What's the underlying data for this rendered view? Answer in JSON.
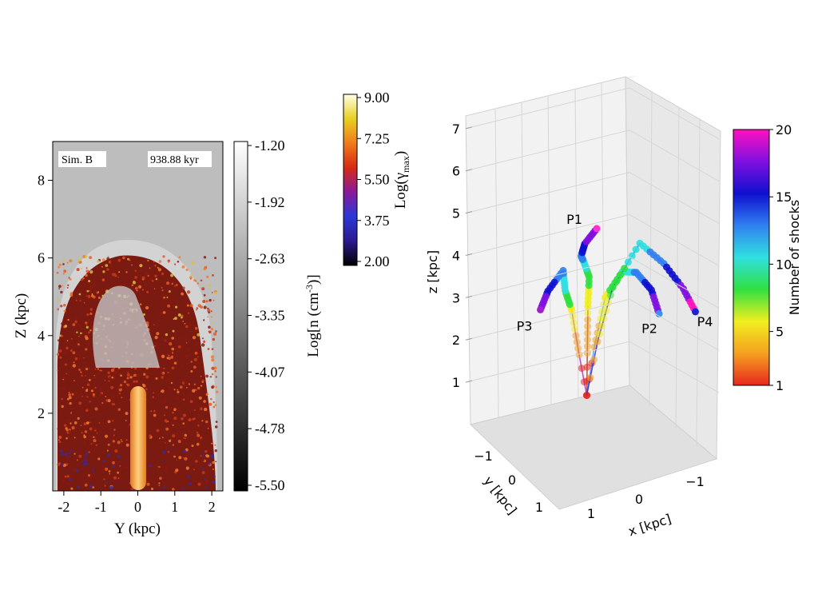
{
  "chart_data": [
    {
      "type": "heatmap",
      "title": "",
      "panel_label": "Sim. B",
      "time_label": "938.88 kyr",
      "xlabel": "Y (kpc)",
      "ylabel": "Z (kpc)",
      "xlim": [
        -2.3,
        2.3
      ],
      "ylim": [
        0,
        9
      ],
      "xticks": [
        "-2",
        "-1",
        "0",
        "1",
        "2"
      ],
      "yticks": [
        "2",
        "4",
        "6",
        "8"
      ],
      "density_colorbar": {
        "label": "Log[n (cm⁻³)]",
        "ticks": [
          "-1.20",
          "-1.92",
          "-2.63",
          "-3.35",
          "-4.07",
          "-4.78",
          "-5.50"
        ],
        "range": [
          -5.5,
          -1.2
        ],
        "colors": [
          "#000000",
          "#ffffff"
        ]
      },
      "gamma_colorbar": {
        "label": "Log(γmax)",
        "ticks": [
          "9.00",
          "7.25",
          "5.50",
          "3.75",
          "2.00"
        ],
        "range": [
          2.0,
          9.0
        ],
        "colors": [
          "#000000",
          "#2b1a8f",
          "#2a38d8",
          "#8a1a9a",
          "#d62a14",
          "#f07a1a",
          "#e8d020",
          "#ffffe8"
        ]
      }
    },
    {
      "type": "scatter",
      "projection": "3d",
      "xlabel": "x [kpc]",
      "ylabel": "y [kpc]",
      "zlabel": "z [kpc]",
      "xticks": [
        "1",
        "0",
        "−1"
      ],
      "yticks": [
        "−1",
        "0",
        "1"
      ],
      "zticks": [
        "1",
        "2",
        "3",
        "4",
        "5",
        "6",
        "7"
      ],
      "zlim": [
        0,
        7
      ],
      "colorbar": {
        "label": "Number of shocks",
        "ticks": [
          "1",
          "5",
          "10",
          "15",
          "20"
        ],
        "range": [
          1,
          20
        ],
        "colors": [
          "#e8281e",
          "#f5a020",
          "#f0ee20",
          "#30e040",
          "#30e0e0",
          "#3080f0",
          "#1010d0",
          "#8010e0",
          "#ff10c0"
        ]
      },
      "series": [
        {
          "name": "P1",
          "color": "#ff30d0",
          "points": [
            [
              0.1,
              0.0,
              0.5
            ],
            [
              0.05,
              0.05,
              1.5
            ],
            [
              0.0,
              0.1,
              2.6
            ],
            [
              -0.1,
              0.2,
              3.3
            ],
            [
              -0.2,
              0.5,
              3.7
            ],
            [
              -0.5,
              1.0,
              3.9
            ],
            [
              -0.8,
              1.3,
              4.2
            ],
            [
              -1.0,
              1.2,
              4.5
            ]
          ]
        },
        {
          "name": "P2",
          "color": "#3a90f0",
          "points": [
            [
              0.1,
              0.0,
              0.5
            ],
            [
              0.0,
              -0.1,
              1.6
            ],
            [
              -0.1,
              -0.3,
              2.7
            ],
            [
              -0.2,
              -0.7,
              3.2
            ],
            [
              -0.3,
              -1.0,
              3.1
            ],
            [
              -0.5,
              -1.2,
              2.6
            ],
            [
              -0.6,
              -1.3,
              2.0
            ]
          ]
        },
        {
          "name": "P3",
          "color": "#a020d0",
          "points": [
            [
              0.1,
              0.0,
              0.5
            ],
            [
              0.2,
              0.1,
              1.5
            ],
            [
              0.3,
              0.2,
              2.6
            ],
            [
              0.3,
              0.4,
              3.1
            ],
            [
              0.2,
              0.6,
              3.6
            ],
            [
              0.4,
              0.8,
              3.2
            ],
            [
              0.5,
              0.9,
              2.8
            ]
          ]
        },
        {
          "name": "P4",
          "color": "#2020d0",
          "points": [
            [
              0.1,
              0.0,
              0.5
            ],
            [
              0.0,
              -0.2,
              1.7
            ],
            [
              -0.2,
              -0.4,
              2.9
            ],
            [
              -0.6,
              -0.7,
              3.8
            ],
            [
              -1.0,
              -0.9,
              3.2
            ],
            [
              -1.3,
              -1.1,
              2.5
            ],
            [
              -1.5,
              -1.2,
              1.9
            ]
          ]
        }
      ]
    }
  ]
}
